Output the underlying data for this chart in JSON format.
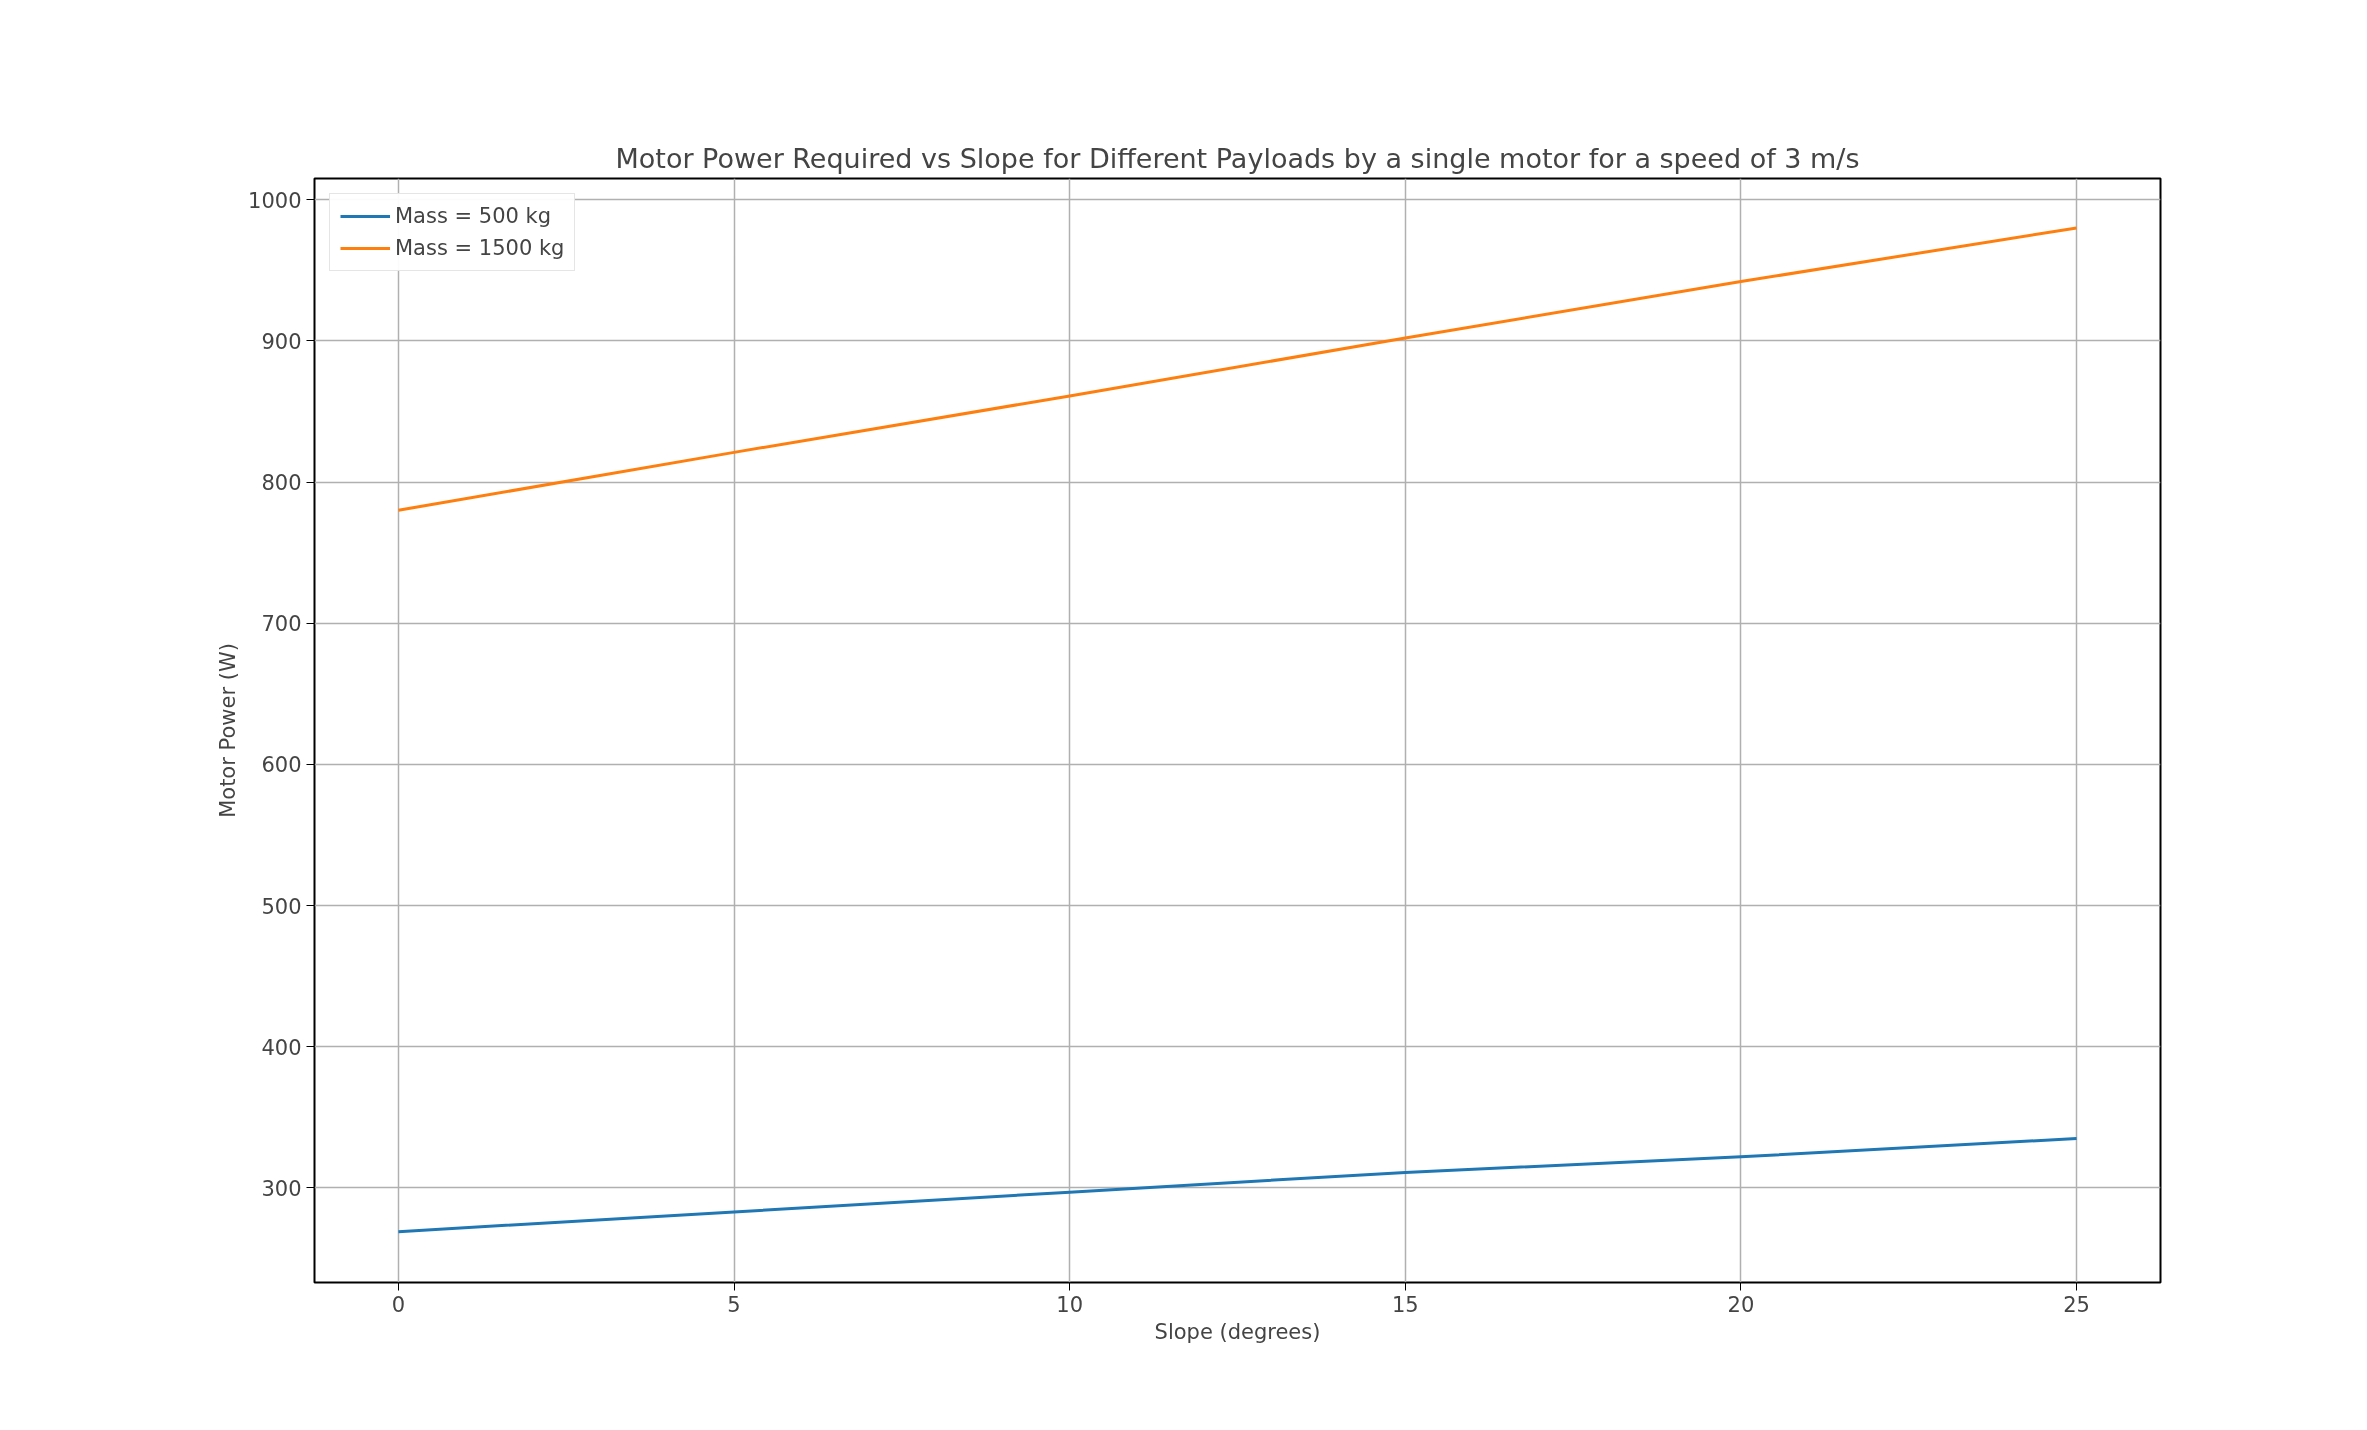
{
  "chart_data": {
    "type": "line",
    "title": "Motor Power Required vs Slope for Different Payloads by a single motor for a speed of 3 m/s",
    "xlabel": "Slope (degrees)",
    "ylabel": "Motor Power (W)",
    "x": [
      0,
      5,
      10,
      15,
      20,
      25
    ],
    "series": [
      {
        "name": "Mass = 500 kg",
        "color": "#1f77b4",
        "values": [
          269,
          283,
          297,
          311,
          322,
          335
        ]
      },
      {
        "name": "Mass = 1500 kg",
        "color": "#ff7f0e",
        "values": [
          780,
          821,
          861,
          902,
          942,
          980
        ]
      }
    ],
    "xlim": [
      -1.25,
      26.25
    ],
    "ylim": [
      233,
      1015
    ],
    "xticks": [
      0,
      5,
      10,
      15,
      20,
      25
    ],
    "yticks": [
      300,
      400,
      500,
      600,
      700,
      800,
      900,
      1000
    ],
    "grid": true,
    "legend": "top left",
    "line_style": "solid",
    "marker": "none"
  }
}
